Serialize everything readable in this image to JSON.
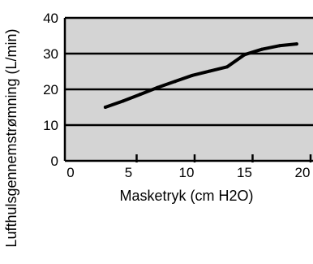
{
  "chart_data": {
    "type": "line",
    "title": "",
    "xlabel": "Masketryk (cm H2O)",
    "ylabel": "Lufthulsgennemstrømning (L/min)",
    "xlim": [
      0,
      20
    ],
    "ylim": [
      0,
      40
    ],
    "x_ticks": [
      "0",
      "5",
      "10",
      "15",
      "20"
    ],
    "y_ticks": [
      "0",
      "10",
      "20",
      "30",
      "40"
    ],
    "grid": "horizontal",
    "background": "#d4d4d4",
    "line_color": "#000000",
    "series": [
      {
        "x": [
          3,
          4.5,
          6,
          7.5,
          9,
          10.5,
          12,
          13.5,
          15,
          16.5,
          18,
          19.5
        ],
        "y": [
          15,
          16.7,
          18.6,
          20.5,
          22.2,
          23.9,
          25.1,
          26.3,
          29.7,
          31.2,
          32.2,
          32.7
        ]
      }
    ]
  }
}
